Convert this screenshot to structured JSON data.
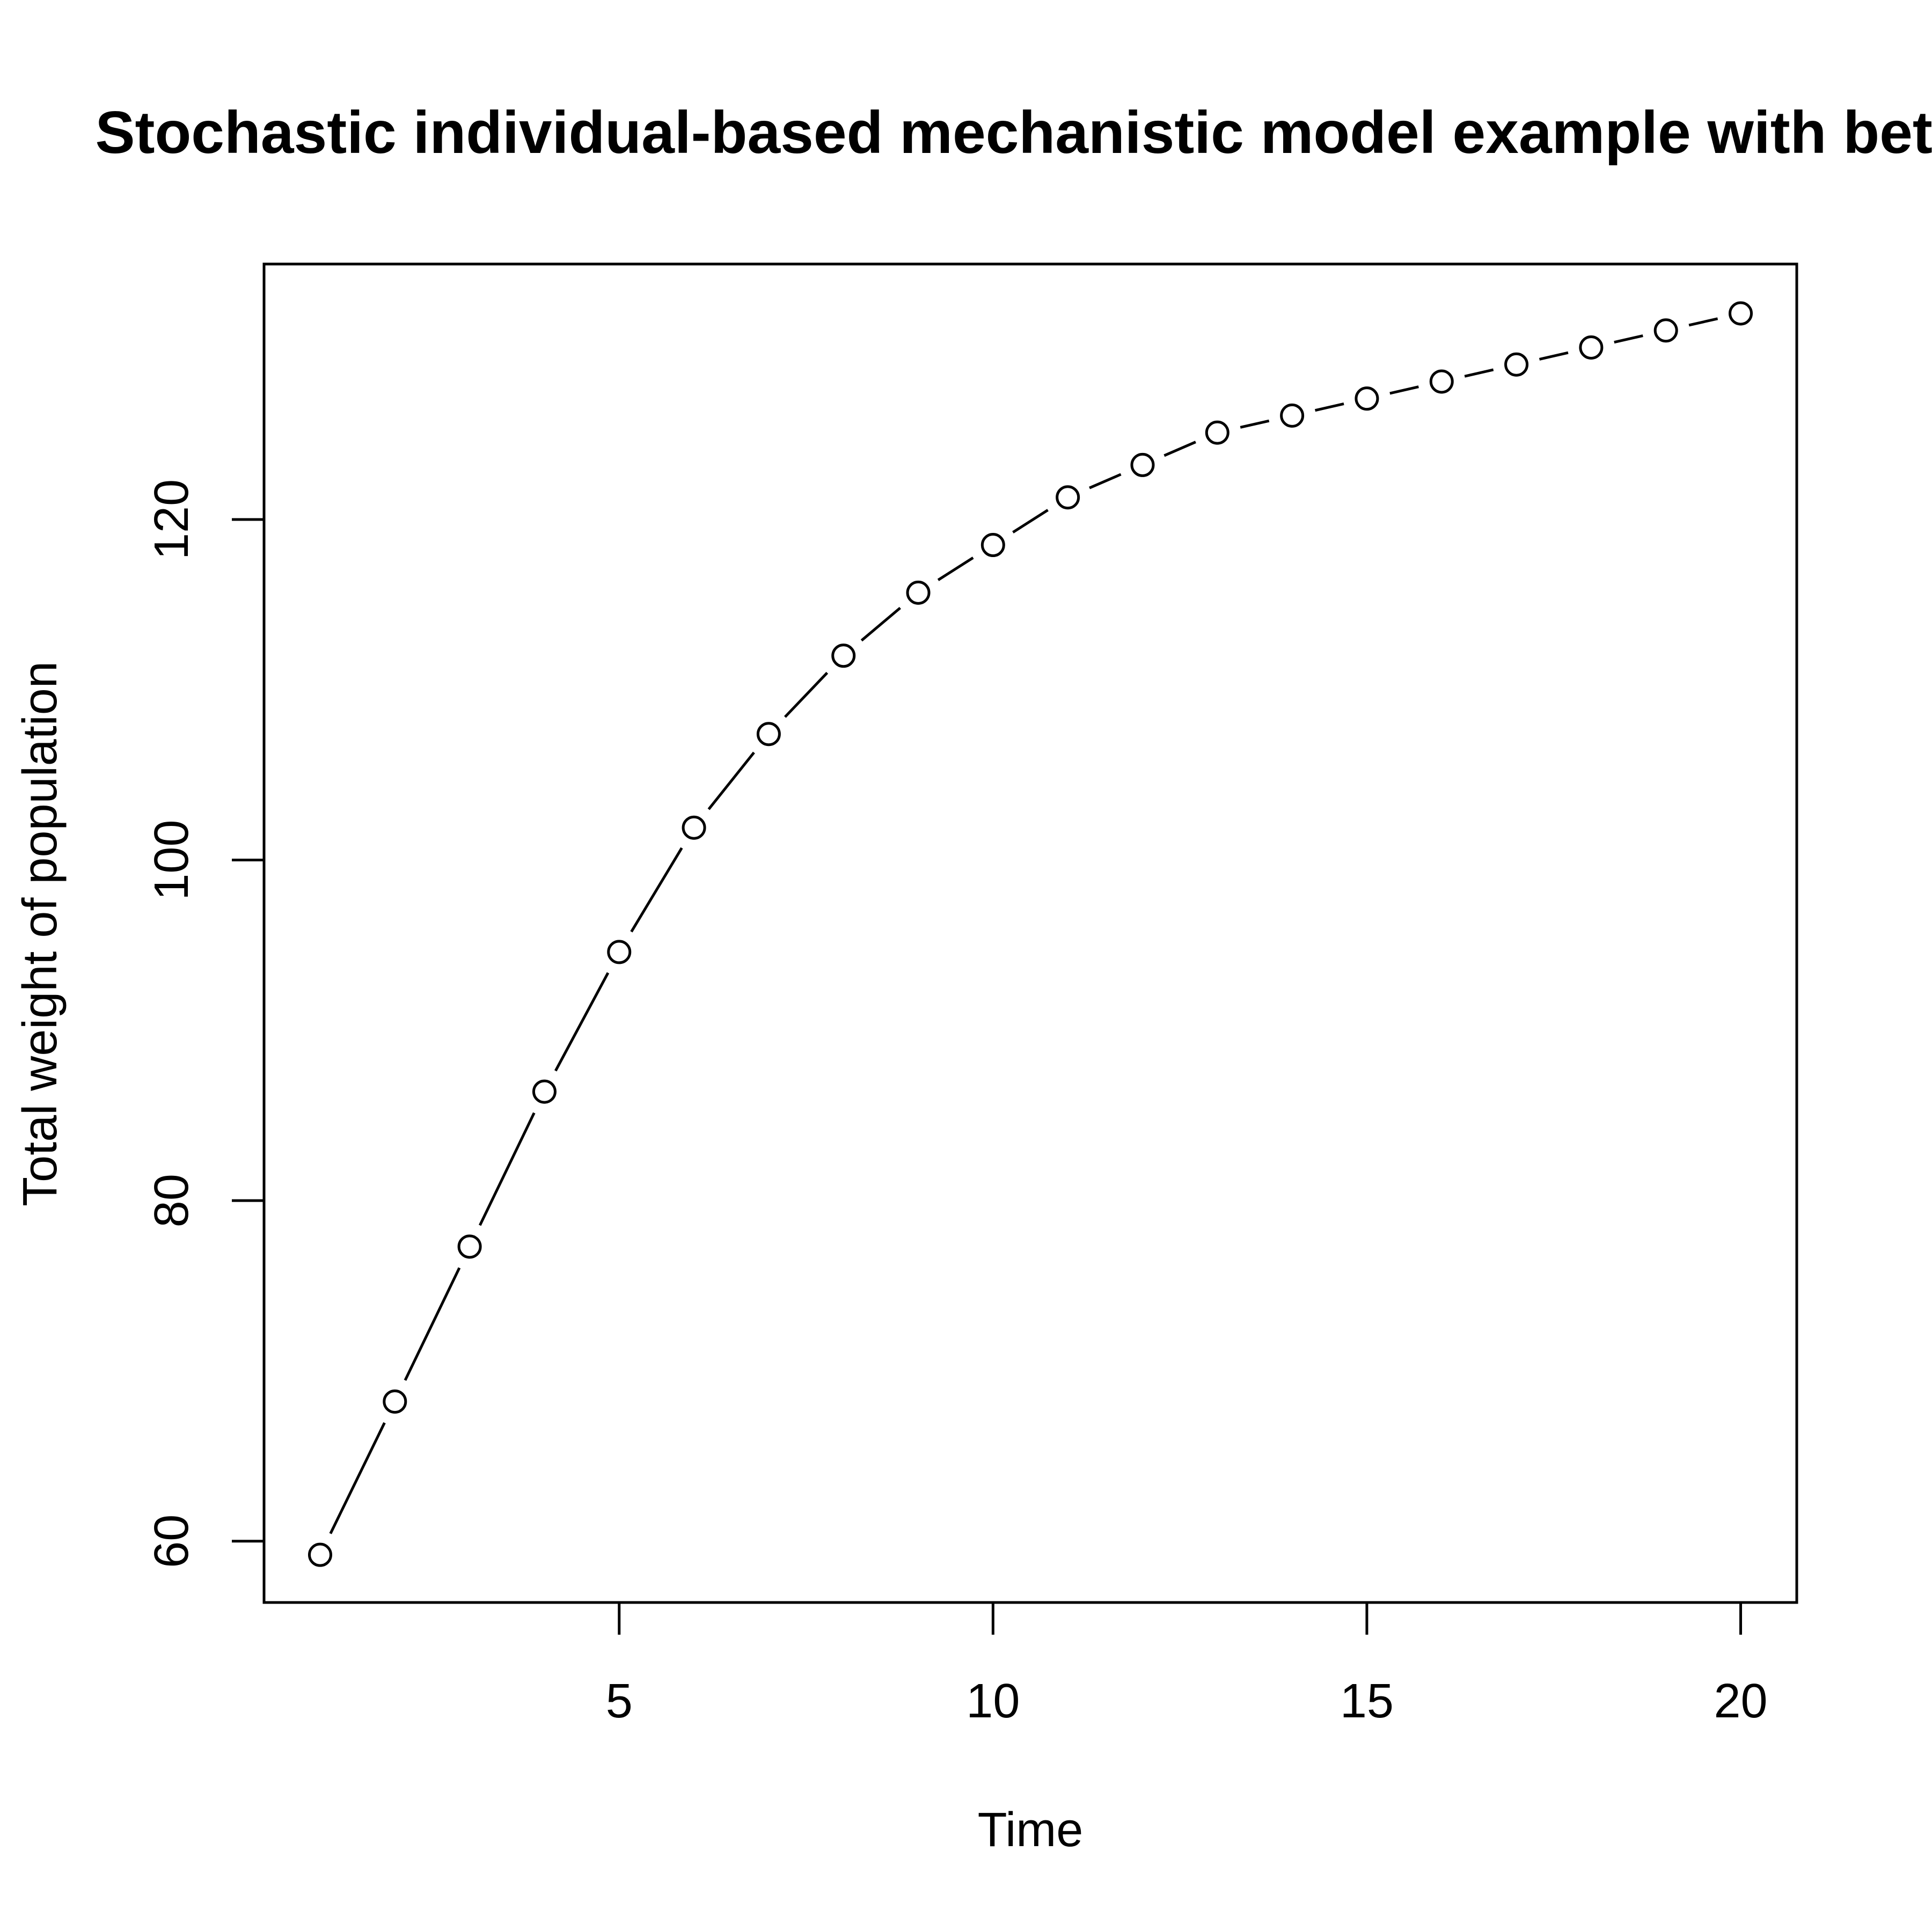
{
  "chart_data": {
    "type": "line",
    "title": "Stochastic individual-based mechanistic model example with beta",
    "xlabel": "Time",
    "ylabel": "Total weight of population",
    "x": [
      1,
      2,
      3,
      4,
      5,
      6,
      7,
      8,
      9,
      10,
      11,
      12,
      13,
      14,
      15,
      16,
      17,
      18,
      19,
      20
    ],
    "series": [
      {
        "values": [
          59.2,
          68.2,
          77.3,
          86.4,
          94.6,
          101.9,
          107.4,
          112.0,
          115.7,
          118.5,
          121.3,
          123.2,
          125.1,
          126.1,
          127.1,
          128.1,
          129.1,
          130.1,
          131.1,
          132.1
        ]
      }
    ],
    "line_style": "dashed",
    "marker": "open-circle",
    "xlim": [
      0.25,
      20.75
    ],
    "ylim": [
      56.4,
      135.0
    ],
    "xticks": [
      5,
      10,
      15,
      20
    ],
    "yticks": [
      60,
      80,
      100,
      120
    ],
    "grid": false,
    "legend": "none"
  }
}
